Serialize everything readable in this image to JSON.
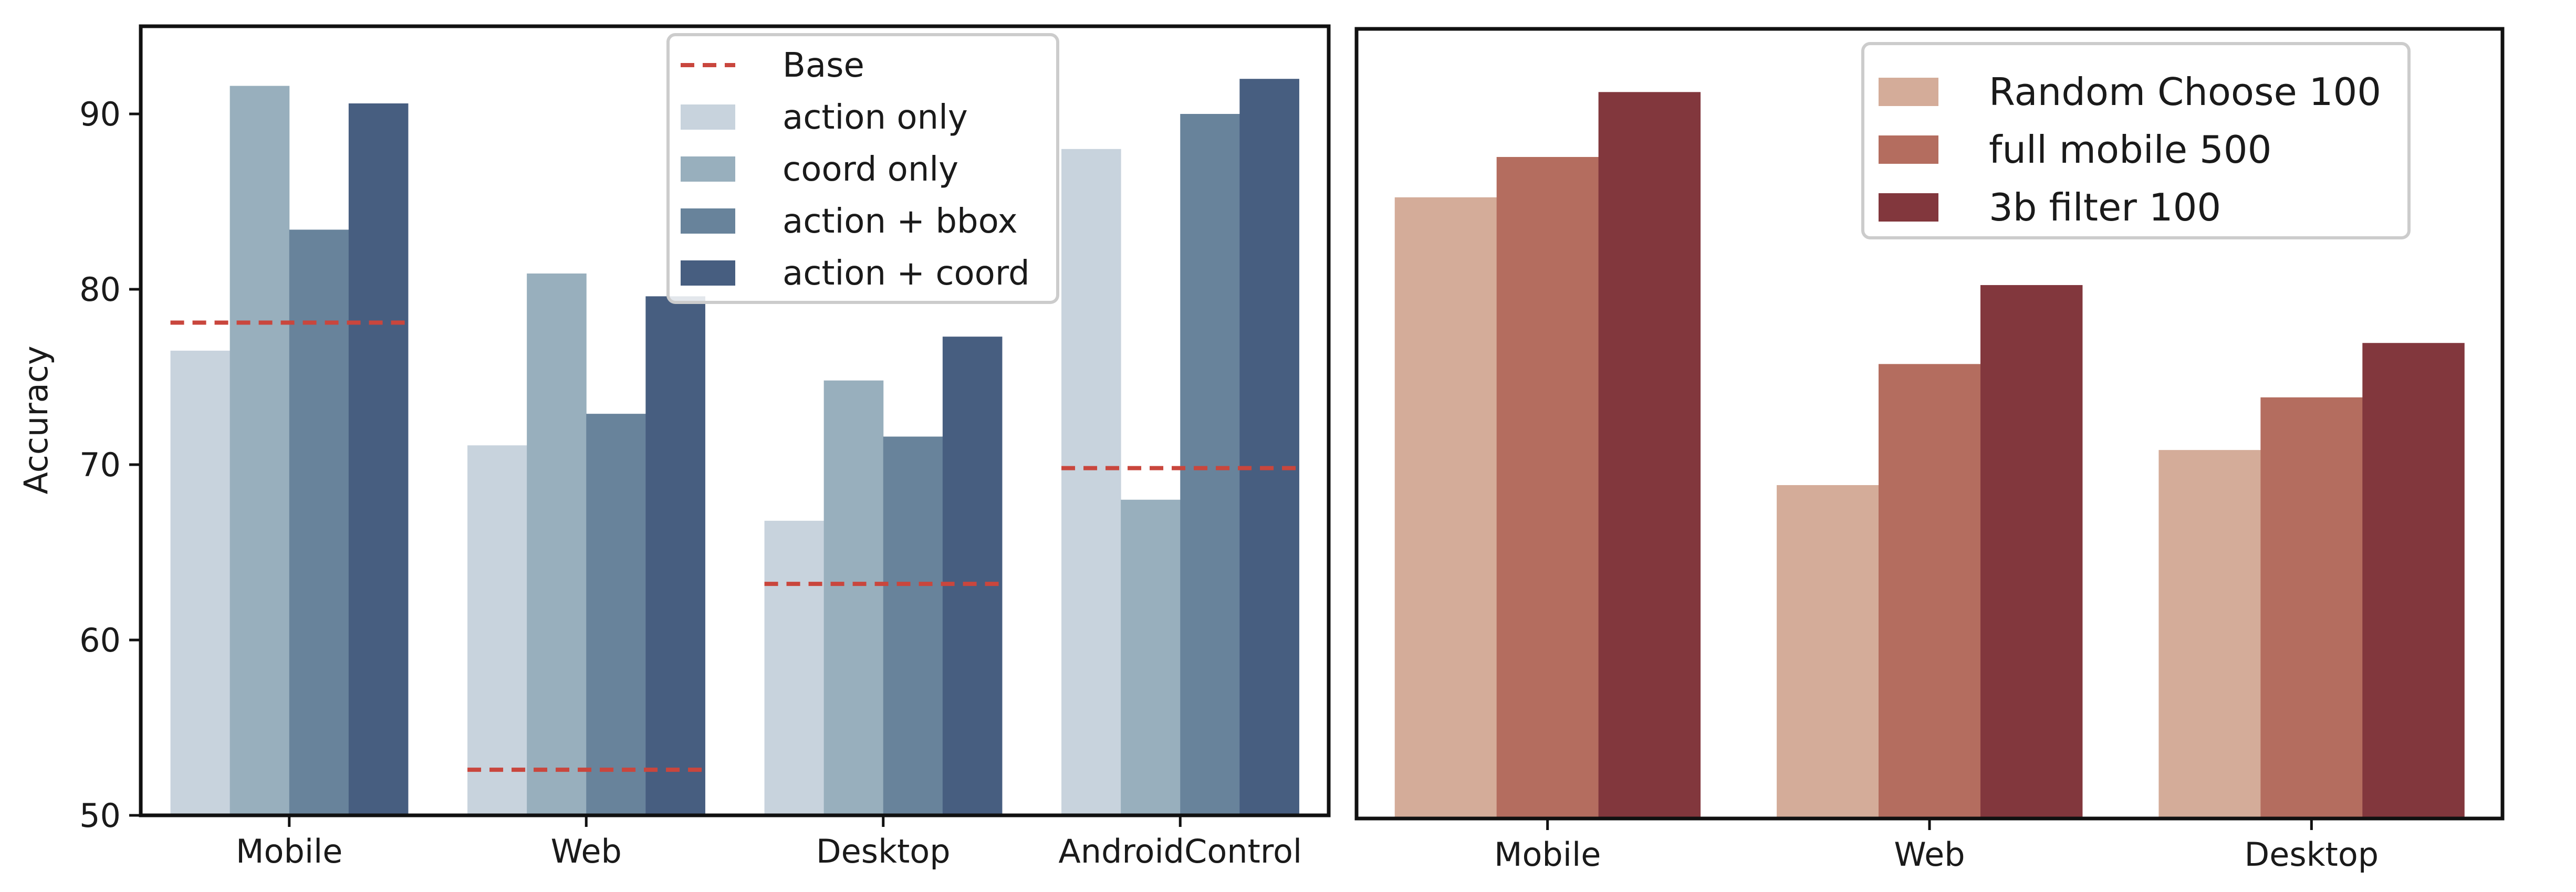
{
  "chart_data": [
    {
      "type": "bar",
      "title": "",
      "xlabel": "",
      "ylabel": "Accuracy",
      "ylim": [
        50,
        95
      ],
      "yticks": [
        50,
        60,
        70,
        80,
        90
      ],
      "grid": false,
      "legend_position": "top-center",
      "categories": [
        "Mobile",
        "Web",
        "Desktop",
        "AndroidControl"
      ],
      "series": [
        {
          "name": "action only",
          "color": "#c8d3dd",
          "values": [
            76.5,
            71.1,
            66.8,
            88.0
          ]
        },
        {
          "name": "coord only",
          "color": "#98afbd",
          "values": [
            91.6,
            80.9,
            74.8,
            68.0
          ]
        },
        {
          "name": "action + bbox",
          "color": "#68839b",
          "values": [
            83.4,
            72.9,
            71.6,
            90.0
          ]
        },
        {
          "name": "action + coord",
          "color": "#475e80",
          "values": [
            90.6,
            79.6,
            77.3,
            92.0
          ]
        }
      ],
      "baseline": {
        "name": "Base",
        "color": "#c9463d",
        "values": [
          78.1,
          52.6,
          63.2,
          69.8
        ]
      }
    },
    {
      "type": "bar",
      "title": "",
      "xlabel": "",
      "ylabel": "",
      "ylim": [
        50,
        95
      ],
      "grid": false,
      "legend_position": "top-right",
      "categories": [
        "Mobile",
        "Web",
        "Desktop"
      ],
      "series": [
        {
          "name": "Random Choose 100",
          "color": "#d4ac99",
          "values": [
            85.4,
            69.0,
            71.0
          ]
        },
        {
          "name": "full mobile 500",
          "color": "#b46d5f",
          "values": [
            87.7,
            75.9,
            74.0
          ]
        },
        {
          "name": "3b filter 100",
          "color": "#82373d",
          "values": [
            91.4,
            80.4,
            77.1
          ]
        }
      ]
    }
  ]
}
